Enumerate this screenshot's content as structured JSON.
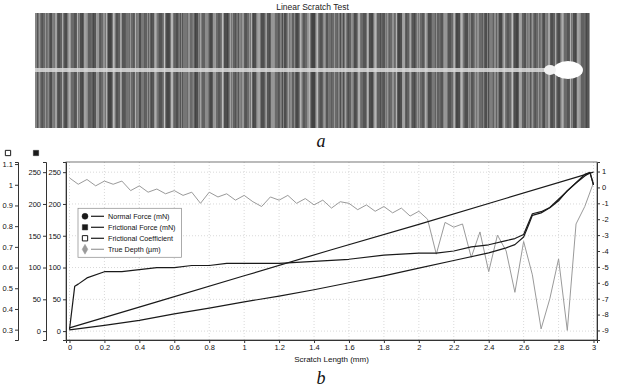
{
  "image_panel": {
    "title": "Linear Scratch Test",
    "label": "a"
  },
  "chart_data": {
    "type": "line",
    "label": "b",
    "x_label": "Scratch Length (mm)",
    "xlim": [
      -0.02,
      3.02
    ],
    "xticks": [
      0,
      0.2,
      0.4,
      0.6,
      0.8,
      1,
      1.2,
      1.4,
      1.6,
      1.8,
      2,
      2.2,
      2.4,
      2.6,
      2.8,
      3
    ],
    "ylim": [
      -14,
      266
    ],
    "yticks": [
      0,
      50,
      100,
      150,
      200,
      250
    ],
    "y2lim": [
      -9.6,
      1.6
    ],
    "y2ticks": [
      1,
      0,
      -1,
      -2,
      -3,
      -4,
      -5,
      -6,
      -7,
      -8,
      -9
    ],
    "y3lim": [
      -14,
      266
    ],
    "y3ticks": [
      0,
      50,
      100,
      150,
      200,
      250
    ],
    "y4lim": [
      0.25,
      1.11
    ],
    "y4ticks": [
      1.1,
      1,
      0.9,
      0.8,
      0.7,
      0.6,
      0.5,
      0.4,
      0.3
    ],
    "grid": true,
    "legend": "center left",
    "series": [
      {
        "name": "Normal Force (mN)",
        "color": "#1a1a1a",
        "marker": "circle",
        "x": [
          0,
          0.5,
          1,
          1.5,
          2,
          2.5,
          3
        ],
        "values": [
          5,
          46,
          87,
          128,
          168,
          209,
          250
        ]
      },
      {
        "name": "Frictional Force (mN)",
        "color": "#1a1a1a",
        "marker": "square",
        "axis": "y3",
        "x": [
          0,
          0.2,
          0.4,
          0.6,
          0.8,
          1,
          1.2,
          1.4,
          1.6,
          1.8,
          2,
          2.2,
          2.4,
          2.5,
          2.55,
          2.6,
          2.63,
          2.65,
          2.7,
          2.75,
          2.8,
          2.85,
          2.9,
          2.95,
          2.98,
          3
        ],
        "values": [
          2,
          9,
          17,
          27,
          36,
          46,
          55,
          65,
          76,
          87,
          99,
          111,
          123,
          131,
          136,
          148,
          168,
          182,
          186,
          194,
          205,
          221,
          233,
          244,
          249,
          230
        ]
      },
      {
        "name": "Frictional Coefficient",
        "color": "#1a1a1a",
        "marker": "square-open",
        "axis": "y4",
        "x": [
          0,
          0.02,
          0.03,
          0.05,
          0.1,
          0.2,
          0.3,
          0.4,
          0.5,
          0.6,
          0.7,
          0.8,
          0.9,
          1,
          1.2,
          1.4,
          1.6,
          1.8,
          2,
          2.1,
          2.2,
          2.3,
          2.4,
          2.5,
          2.55,
          2.6,
          2.63,
          2.65,
          2.7,
          2.75,
          2.8,
          2.85,
          2.9,
          2.95,
          2.98,
          3
        ],
        "values": [
          0.3,
          0.44,
          0.51,
          0.52,
          0.55,
          0.58,
          0.58,
          0.59,
          0.6,
          0.6,
          0.61,
          0.61,
          0.62,
          0.62,
          0.62,
          0.63,
          0.64,
          0.66,
          0.67,
          0.67,
          0.68,
          0.7,
          0.71,
          0.73,
          0.74,
          0.76,
          0.82,
          0.86,
          0.87,
          0.89,
          0.93,
          0.97,
          1.01,
          1.05,
          1.06,
          1.0
        ]
      },
      {
        "name": "True Depth (µm)",
        "color": "#9a9a9a",
        "marker": "diamond",
        "axis": "y2",
        "x": [
          0,
          0.05,
          0.1,
          0.15,
          0.2,
          0.25,
          0.3,
          0.35,
          0.4,
          0.45,
          0.5,
          0.55,
          0.6,
          0.65,
          0.7,
          0.75,
          0.8,
          0.85,
          0.9,
          0.95,
          1,
          1.05,
          1.1,
          1.15,
          1.2,
          1.25,
          1.3,
          1.35,
          1.4,
          1.45,
          1.5,
          1.55,
          1.6,
          1.65,
          1.7,
          1.75,
          1.8,
          1.85,
          1.9,
          1.95,
          2,
          2.05,
          2.1,
          2.15,
          2.2,
          2.25,
          2.3,
          2.35,
          2.4,
          2.45,
          2.5,
          2.55,
          2.6,
          2.65,
          2.7,
          2.75,
          2.8,
          2.85,
          2.9,
          2.95,
          3
        ],
        "values": [
          0.6,
          0.2,
          0.5,
          0.1,
          0.4,
          0.2,
          0.4,
          -0.2,
          0.1,
          -0.3,
          -0.1,
          -0.4,
          -0.2,
          -0.5,
          -0.3,
          -1.0,
          -0.3,
          -0.6,
          -0.4,
          -0.8,
          -0.5,
          -0.9,
          -1.2,
          -0.6,
          -0.8,
          -0.5,
          -1.0,
          -0.7,
          -1.1,
          -0.8,
          -1.3,
          -0.9,
          -1.0,
          -1.4,
          -1.1,
          -1.5,
          -1.2,
          -1.6,
          -1.3,
          -1.8,
          -1.5,
          -2.0,
          -4.2,
          -2.2,
          -2.5,
          -2.3,
          -4.4,
          -2.8,
          -5.3,
          -3.0,
          -4.0,
          -6.6,
          -3.4,
          -5.5,
          -8.9,
          -7.0,
          -4.5,
          -9.0,
          -2.3,
          -1.2,
          0.3
        ]
      }
    ]
  }
}
